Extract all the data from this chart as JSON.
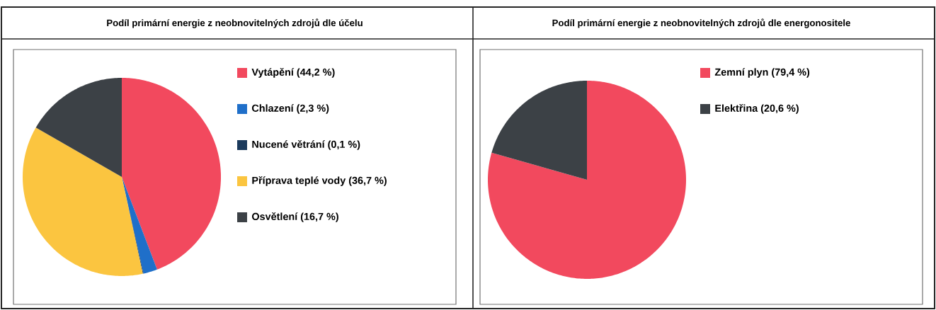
{
  "chart_data": [
    {
      "type": "pie",
      "title": "Podíl primární energie z neobnovitelných zdrojů dle účelu",
      "categories": [
        "Vytápění (44,2 %)",
        "Chlazení (2,3 %)",
        "Nucené větrání (0,1 %)",
        "Příprava teplé vody (36,7 %)",
        "Osvětlení (16,7 %)"
      ],
      "values": [
        44.2,
        2.3,
        0.1,
        36.7,
        16.7
      ],
      "colors": [
        "#f2495e",
        "#1f6fc9",
        "#1b3a5c",
        "#fbc540",
        "#3c4146"
      ],
      "legend": "right"
    },
    {
      "type": "pie",
      "title": "Podíl primární energie z neobnovitelných zdrojů dle energonositele",
      "categories": [
        "Zemní plyn (79,4 %)",
        "Elektřina (20,6 %)"
      ],
      "values": [
        79.4,
        20.6
      ],
      "colors": [
        "#f2495e",
        "#3c4146"
      ],
      "legend": "right"
    }
  ]
}
